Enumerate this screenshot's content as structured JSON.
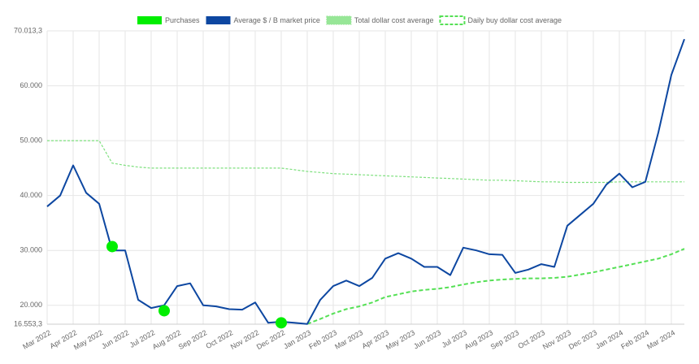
{
  "chart_data": {
    "type": "line",
    "categories": [
      "Mar 2022",
      null,
      "Apr 2022",
      null,
      "May 2022",
      null,
      "Jun 2022",
      null,
      "Jul 2022",
      null,
      "Aug 2022",
      null,
      "Sep 2022",
      null,
      "Oct 2022",
      null,
      "Nov 2022",
      null,
      "Dec 2022",
      null,
      "Jan 2023",
      null,
      "Feb 2023",
      null,
      "Mar 2023",
      null,
      "Apr 2023",
      null,
      "May 2023",
      null,
      "Jun 2023",
      null,
      "Jul 2023",
      null,
      "Aug 2023",
      null,
      "Sep 2023",
      null,
      "Oct 2023",
      null,
      "Nov 2023",
      null,
      "Dec 2023",
      null,
      "Jan 2024",
      null,
      "Feb 2024",
      null,
      "Mar 2024",
      null
    ],
    "ylim": [
      16553.3,
      70013.3
    ],
    "yticks": [
      {
        "value": 16553.3,
        "label": "16.553,3"
      },
      {
        "value": 20000,
        "label": "20.000"
      },
      {
        "value": 30000,
        "label": "30.000"
      },
      {
        "value": 40000,
        "label": "40.000"
      },
      {
        "value": 50000,
        "label": "50.000"
      },
      {
        "value": 60000,
        "label": "60.000"
      },
      {
        "value": 70013.3,
        "label": "70.013,3"
      }
    ],
    "grid": true,
    "series": [
      {
        "name": "Purchases",
        "color": "#00ee00",
        "mark": "point",
        "values": [
          null,
          null,
          null,
          null,
          null,
          30700,
          null,
          null,
          null,
          19000,
          null,
          null,
          null,
          null,
          null,
          null,
          null,
          null,
          16800,
          null,
          null,
          null,
          null,
          null,
          null,
          null,
          null,
          null,
          null,
          null,
          null,
          null,
          null,
          null,
          null,
          null,
          null,
          null,
          null,
          null,
          null,
          null,
          null,
          null,
          null,
          null,
          null,
          null,
          null,
          null
        ]
      },
      {
        "name": "Average $ / B market price",
        "color": "#0d47a1",
        "mark": "solid",
        "values": [
          38000,
          40000,
          45500,
          40500,
          38500,
          30000,
          30000,
          21000,
          19500,
          20000,
          23500,
          24000,
          20000,
          19800,
          19300,
          19200,
          20500,
          16800,
          17000,
          16800,
          16600,
          21000,
          23500,
          24500,
          23500,
          25000,
          28500,
          29500,
          28500,
          27000,
          27000,
          25500,
          30500,
          30000,
          29300,
          29200,
          25900,
          26500,
          27500,
          27000,
          34500,
          36500,
          38500,
          42000,
          44000,
          41500,
          42500,
          51500,
          62000,
          68500
        ]
      },
      {
        "name": "Total dollar cost average",
        "color": "#7ee07e",
        "mark": "dotted",
        "values": [
          50000,
          50000,
          50000,
          50000,
          50000,
          45900,
          45500,
          45200,
          45000,
          45000,
          45000,
          45000,
          45000,
          45000,
          45000,
          45000,
          45000,
          45000,
          45000,
          44700,
          44400,
          44200,
          44000,
          43900,
          43800,
          43700,
          43600,
          43500,
          43400,
          43300,
          43200,
          43100,
          43000,
          42900,
          42800,
          42800,
          42700,
          42600,
          42500,
          42500,
          42400,
          42400,
          42400,
          42400,
          42500,
          42500,
          42500,
          42500,
          42500,
          42500
        ]
      },
      {
        "name": "Daily buy dollar cost average",
        "color": "#55e055",
        "mark": "dashed",
        "values": [
          null,
          null,
          null,
          null,
          null,
          null,
          null,
          null,
          null,
          null,
          null,
          null,
          null,
          null,
          null,
          null,
          null,
          null,
          null,
          null,
          16600,
          17500,
          18500,
          19300,
          19800,
          20500,
          21500,
          22000,
          22500,
          22800,
          23000,
          23300,
          23800,
          24200,
          24500,
          24700,
          24800,
          24900,
          24900,
          25000,
          25200,
          25600,
          26000,
          26500,
          27000,
          27500,
          28000,
          28500,
          29300,
          30300
        ]
      }
    ]
  }
}
